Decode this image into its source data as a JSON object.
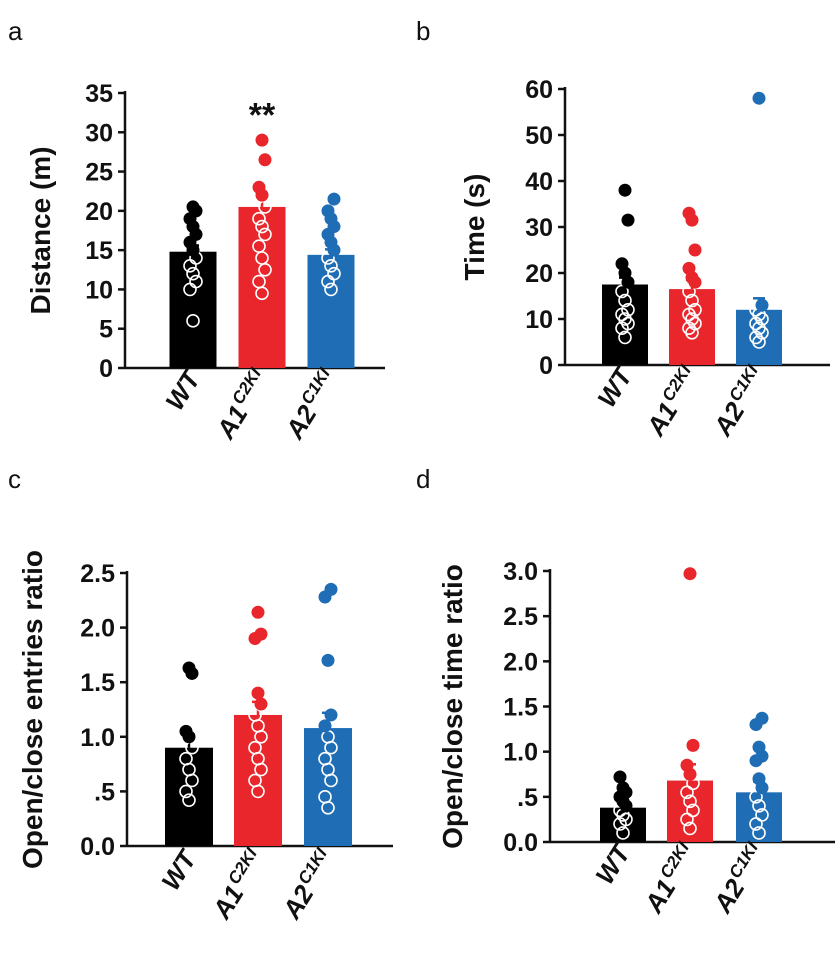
{
  "figure": {
    "colors": {
      "WT": "#000000",
      "A1": "#e8262b",
      "A2": "#1f6db5"
    }
  },
  "chart_data": [
    {
      "panel": "a",
      "type": "bar",
      "ylabel": "Distance (m)",
      "ylim": [
        0,
        35
      ],
      "yticks": [
        "0",
        "5",
        "10",
        "15",
        "20",
        "25",
        "30",
        "35"
      ],
      "ytick_values": [
        0,
        5,
        10,
        15,
        20,
        25,
        30,
        35
      ],
      "categories": [
        {
          "key": "WT",
          "base": "WT",
          "sup": ""
        },
        {
          "key": "A1",
          "base": "A1",
          "sup": "C2KI"
        },
        {
          "key": "A2",
          "base": "A2",
          "sup": "C1KI"
        }
      ],
      "values": [
        14.8,
        20.5,
        14.4
      ],
      "errors": [
        0.8,
        1.5,
        0.7
      ],
      "points": [
        [
          6,
          10,
          11,
          12,
          13,
          14,
          15,
          16,
          17,
          18,
          19,
          20,
          20.5
        ],
        [
          9.5,
          11,
          12.5,
          14,
          15.5,
          17,
          18,
          19,
          20.5,
          22,
          23,
          26.5,
          29
        ],
        [
          10,
          11,
          12,
          13,
          14,
          15,
          16,
          17,
          18,
          19,
          20,
          21.5
        ]
      ],
      "annotation": {
        "text": "**",
        "category": 1,
        "y": 31.5
      }
    },
    {
      "panel": "b",
      "type": "bar",
      "ylabel": "Time (s)",
      "ylim": [
        0,
        60
      ],
      "yticks": [
        "0",
        "10",
        "20",
        "30",
        "40",
        "50",
        "60"
      ],
      "ytick_values": [
        0,
        10,
        20,
        30,
        40,
        50,
        60
      ],
      "categories": [
        {
          "key": "WT",
          "base": "WT",
          "sup": ""
        },
        {
          "key": "A1",
          "base": "A1",
          "sup": "C2KI"
        },
        {
          "key": "A2",
          "base": "A2",
          "sup": "C1KI"
        }
      ],
      "values": [
        17.5,
        16.5,
        12
      ],
      "errors": [
        1.5,
        2.0,
        2.5
      ],
      "points": [
        [
          6,
          8,
          9,
          10,
          11,
          12,
          14,
          16,
          18,
          20,
          22,
          31.5,
          38
        ],
        [
          7,
          8,
          9,
          10,
          11,
          12,
          14,
          16,
          18,
          19,
          21,
          25,
          31.5,
          33
        ],
        [
          5,
          6,
          7,
          8,
          9,
          10,
          11,
          12,
          13,
          58
        ]
      ]
    },
    {
      "panel": "c",
      "type": "bar",
      "ylabel": "Open/close entries ratio",
      "ylim": [
        0,
        2.5
      ],
      "yticks": [
        "0.0",
        ".5",
        "1.0",
        "1.5",
        "2.0",
        "2.5"
      ],
      "ytick_values": [
        0,
        0.5,
        1.0,
        1.5,
        2.0,
        2.5
      ],
      "categories": [
        {
          "key": "WT",
          "base": "WT",
          "sup": ""
        },
        {
          "key": "A1",
          "base": "A1",
          "sup": "C2KI"
        },
        {
          "key": "A2",
          "base": "A2",
          "sup": "C1KI"
        }
      ],
      "values": [
        0.9,
        1.2,
        1.08
      ],
      "errors": [
        0.12,
        0.12,
        0.14
      ],
      "points": [
        [
          0.42,
          0.5,
          0.6,
          0.7,
          0.8,
          0.9,
          1.0,
          1.05,
          1.58,
          1.63
        ],
        [
          0.5,
          0.6,
          0.7,
          0.8,
          0.9,
          1.0,
          1.1,
          1.2,
          1.3,
          1.4,
          1.9,
          1.94,
          2.14
        ],
        [
          0.35,
          0.45,
          0.6,
          0.7,
          0.8,
          0.9,
          1.0,
          1.1,
          1.2,
          1.7,
          2.28,
          2.35
        ]
      ]
    },
    {
      "panel": "d",
      "type": "bar",
      "ylabel": "Open/close time ratio",
      "ylim": [
        0,
        3.0
      ],
      "yticks": [
        "0.0",
        ".5",
        "1.0",
        "1.5",
        "2.0",
        "2.5",
        "3.0"
      ],
      "ytick_values": [
        0,
        0.5,
        1.0,
        1.5,
        2.0,
        2.5,
        3.0
      ],
      "categories": [
        {
          "key": "WT",
          "base": "WT",
          "sup": ""
        },
        {
          "key": "A1",
          "base": "A1",
          "sup": "C2KI"
        },
        {
          "key": "A2",
          "base": "A2",
          "sup": "C1KI"
        }
      ],
      "values": [
        0.38,
        0.68,
        0.55
      ],
      "errors": [
        0.05,
        0.18,
        0.12
      ],
      "points": [
        [
          0.1,
          0.2,
          0.25,
          0.3,
          0.35,
          0.4,
          0.45,
          0.5,
          0.55,
          0.6,
          0.72
        ],
        [
          0.15,
          0.25,
          0.35,
          0.45,
          0.55,
          0.65,
          0.75,
          0.85,
          1.07,
          2.97
        ],
        [
          0.1,
          0.2,
          0.3,
          0.4,
          0.5,
          0.6,
          0.7,
          0.9,
          0.95,
          1.05,
          1.3,
          1.37
        ]
      ]
    }
  ]
}
